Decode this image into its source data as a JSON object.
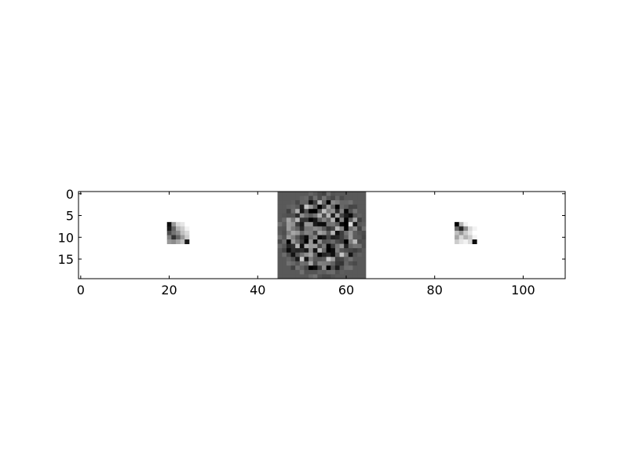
{
  "chart_data": {
    "type": "heatmap",
    "title": "",
    "xlabel": "",
    "ylabel": "",
    "colormap": "gray",
    "xlim": [
      -0.5,
      109.5
    ],
    "ylim": [
      19.5,
      -0.5
    ],
    "x_ticks": [
      0,
      20,
      40,
      60,
      80,
      100
    ],
    "y_ticks": [
      0,
      5,
      10,
      15
    ],
    "x_tick_labels": [
      "0",
      "20",
      "40",
      "60",
      "80",
      "100"
    ],
    "y_tick_labels": [
      "0",
      "5",
      "10",
      "15"
    ],
    "grid": false,
    "panels": [
      {
        "name": "",
        "x_range": [
          0,
          44
        ],
        "background_value": 1.0,
        "patch": {
          "x0": 20,
          "y0": 7,
          "values": [
            [
              0.05,
              0.6,
              0.85,
              0.9,
              1.0
            ],
            [
              0.1,
              0.4,
              0.7,
              0.8,
              0.95
            ],
            [
              0.3,
              0.45,
              0.55,
              0.75,
              0.85
            ],
            [
              0.5,
              0.2,
              0.4,
              0.6,
              0.8
            ],
            [
              0.6,
              0.55,
              0.65,
              0.75,
              0.1
            ]
          ]
        }
      },
      {
        "name": "",
        "x_range": [
          45,
          64
        ],
        "background_value": 0.35,
        "pattern": "noisy-ring"
      },
      {
        "name": "",
        "x_range": [
          65,
          109
        ],
        "background_value": 1.0,
        "patch": {
          "x0": 85,
          "y0": 7,
          "values": [
            [
              0.0,
              0.7,
              0.95,
              1.0,
              1.0
            ],
            [
              0.4,
              0.15,
              0.55,
              0.85,
              0.95
            ],
            [
              0.75,
              0.6,
              0.8,
              0.9,
              1.0
            ],
            [
              0.65,
              0.85,
              0.7,
              0.8,
              0.95
            ],
            [
              0.8,
              0.9,
              0.95,
              0.85,
              0.05
            ]
          ]
        }
      }
    ]
  }
}
